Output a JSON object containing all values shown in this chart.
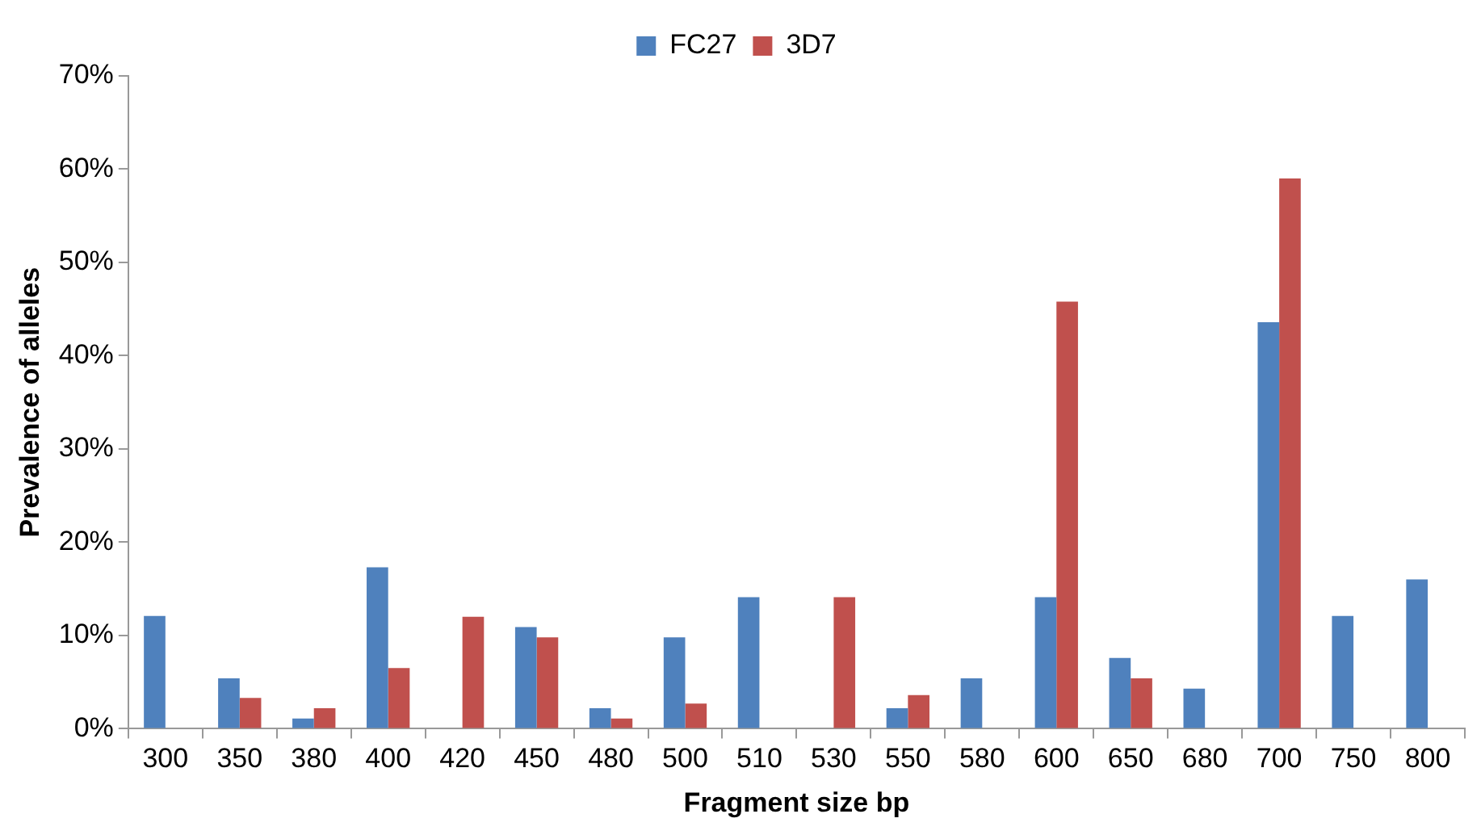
{
  "chart_data": {
    "type": "bar",
    "xlabel": "Fragment size bp",
    "ylabel": "Prevalence of alleles",
    "categories": [
      "300",
      "350",
      "380",
      "400",
      "420",
      "450",
      "480",
      "500",
      "510",
      "530",
      "550",
      "580",
      "600",
      "650",
      "680",
      "700",
      "750",
      "800"
    ],
    "series": [
      {
        "name": "FC27",
        "color": "#4f81bd",
        "values": [
          12.1,
          5.4,
          1.1,
          17.3,
          0,
          10.9,
          2.2,
          9.8,
          14.1,
          0,
          2.2,
          5.4,
          14.1,
          7.6,
          4.3,
          43.6,
          12.1,
          16.0
        ]
      },
      {
        "name": "3D7",
        "color": "#c0504d",
        "values": [
          0,
          3.3,
          2.2,
          6.5,
          12.0,
          9.8,
          1.1,
          2.7,
          0,
          14.1,
          3.6,
          0,
          45.8,
          5.4,
          0,
          59.0,
          0,
          0
        ]
      }
    ],
    "ylim": [
      0,
      70
    ],
    "yticks": [
      {
        "value": 0,
        "label": "0%"
      },
      {
        "value": 10,
        "label": "10%"
      },
      {
        "value": 20,
        "label": "20%"
      },
      {
        "value": 30,
        "label": "30%"
      },
      {
        "value": 40,
        "label": "40%"
      },
      {
        "value": 50,
        "label": "50%"
      },
      {
        "value": 60,
        "label": "60%"
      },
      {
        "value": 70,
        "label": "70%"
      }
    ],
    "grid": false,
    "legend": "top"
  }
}
